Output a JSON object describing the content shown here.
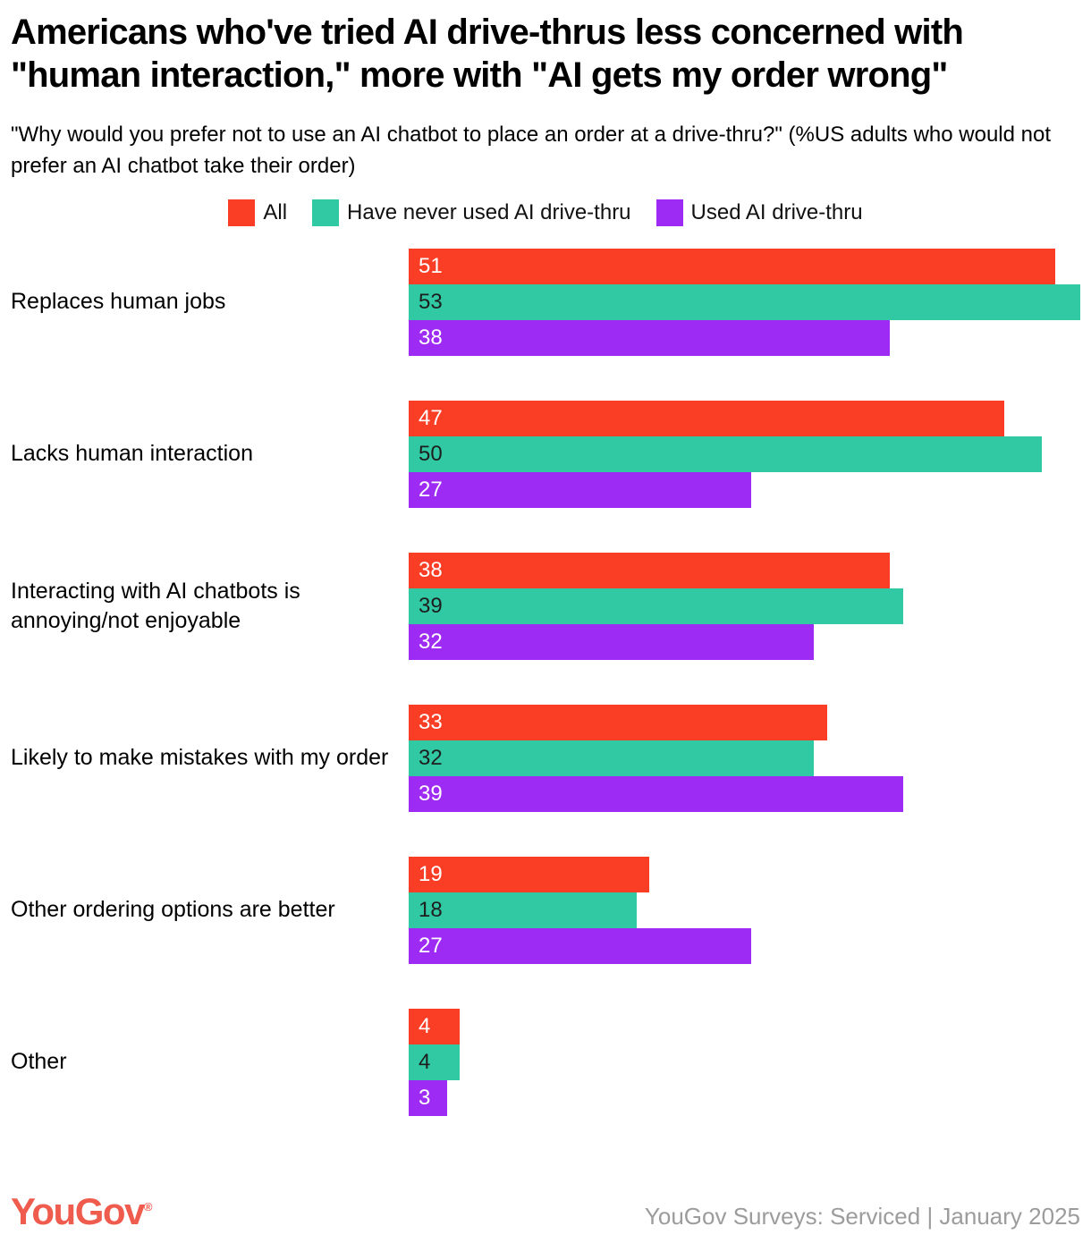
{
  "title": "Americans who've tried AI drive-thrus less concerned with \"human interaction,\" more with \"AI gets my order wrong\"",
  "subtitle": "\"Why would you prefer not to use an AI chatbot to place an order at a drive-thru?\" (%US adults who would not prefer an AI chatbot take their order)",
  "chart_data": {
    "type": "bar",
    "orientation": "horizontal",
    "title": "Americans who've tried AI drive-thrus less concerned with \"human interaction,\" more with \"AI gets my order wrong\"",
    "categories": [
      "Replaces human jobs",
      "Lacks human interaction",
      "Interacting with AI chatbots is annoying/not enjoyable",
      "Likely to make mistakes with my order",
      "Other ordering options are better",
      "Other"
    ],
    "series": [
      {
        "name": "All",
        "color": "#FA3E26",
        "label_color": "#FFFFFF",
        "values": [
          51,
          47,
          38,
          33,
          19,
          4
        ]
      },
      {
        "name": "Have never used AI drive-thru",
        "color": "#30C9A4",
        "label_color": "#1E1E1E",
        "values": [
          53,
          50,
          39,
          32,
          18,
          4
        ]
      },
      {
        "name": "Used AI drive-thru",
        "color": "#9E2BF3",
        "label_color": "#FFFFFF",
        "values": [
          38,
          27,
          32,
          39,
          27,
          3
        ]
      }
    ],
    "xlim": [
      0,
      53
    ],
    "value_labels": "inside-left",
    "legend_position": "top-center",
    "grid": false
  },
  "footer": {
    "logo_text": "YouGov",
    "registered_mark": "®",
    "logo_color": "#EF5B4D",
    "source_text": "YouGov Surveys: Serviced | January 2025",
    "source_color": "#9C9C9C"
  }
}
